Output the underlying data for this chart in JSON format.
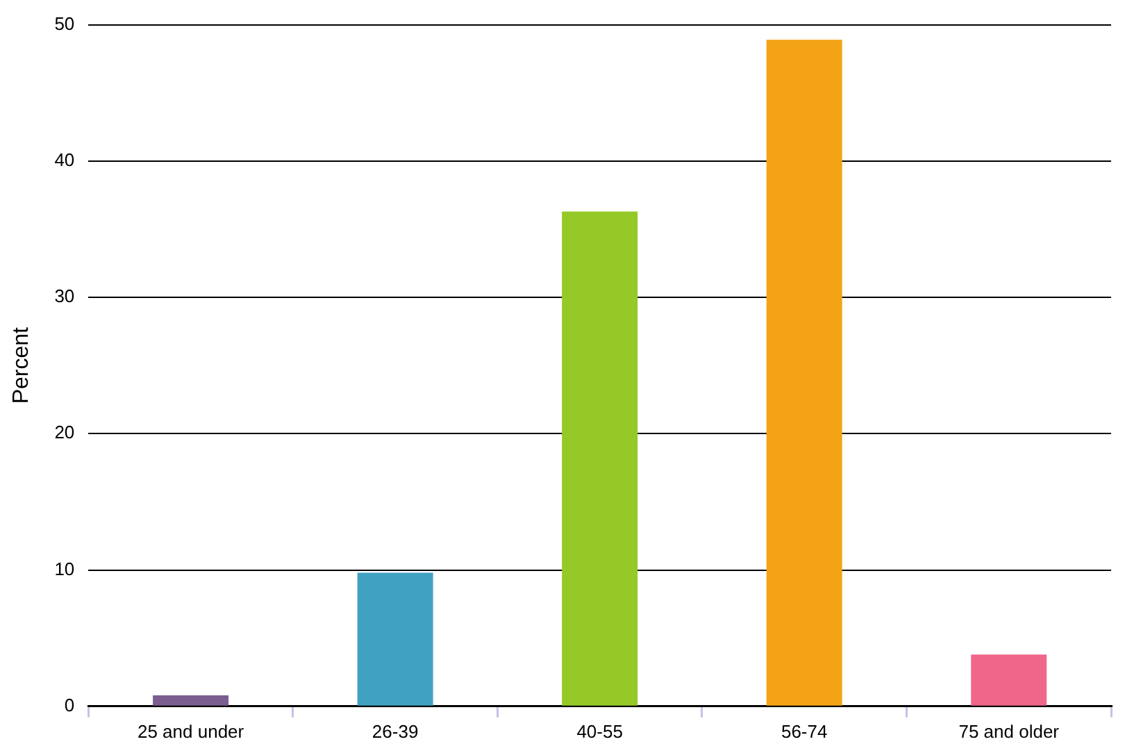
{
  "chart_data": {
    "type": "bar",
    "ylabel": "Percent",
    "categories": [
      "25 and under",
      "26-39",
      "40-55",
      "56-74",
      "75 and older"
    ],
    "values": [
      0.8,
      9.8,
      36.3,
      48.9,
      3.8
    ],
    "colors": [
      "#7b5e8f",
      "#41a1c1",
      "#95c927",
      "#f4a317",
      "#f0668a"
    ],
    "ylim": [
      0,
      50
    ],
    "yticks": [
      0,
      10,
      20,
      30,
      40,
      50
    ],
    "grid": "y",
    "legend": false
  }
}
